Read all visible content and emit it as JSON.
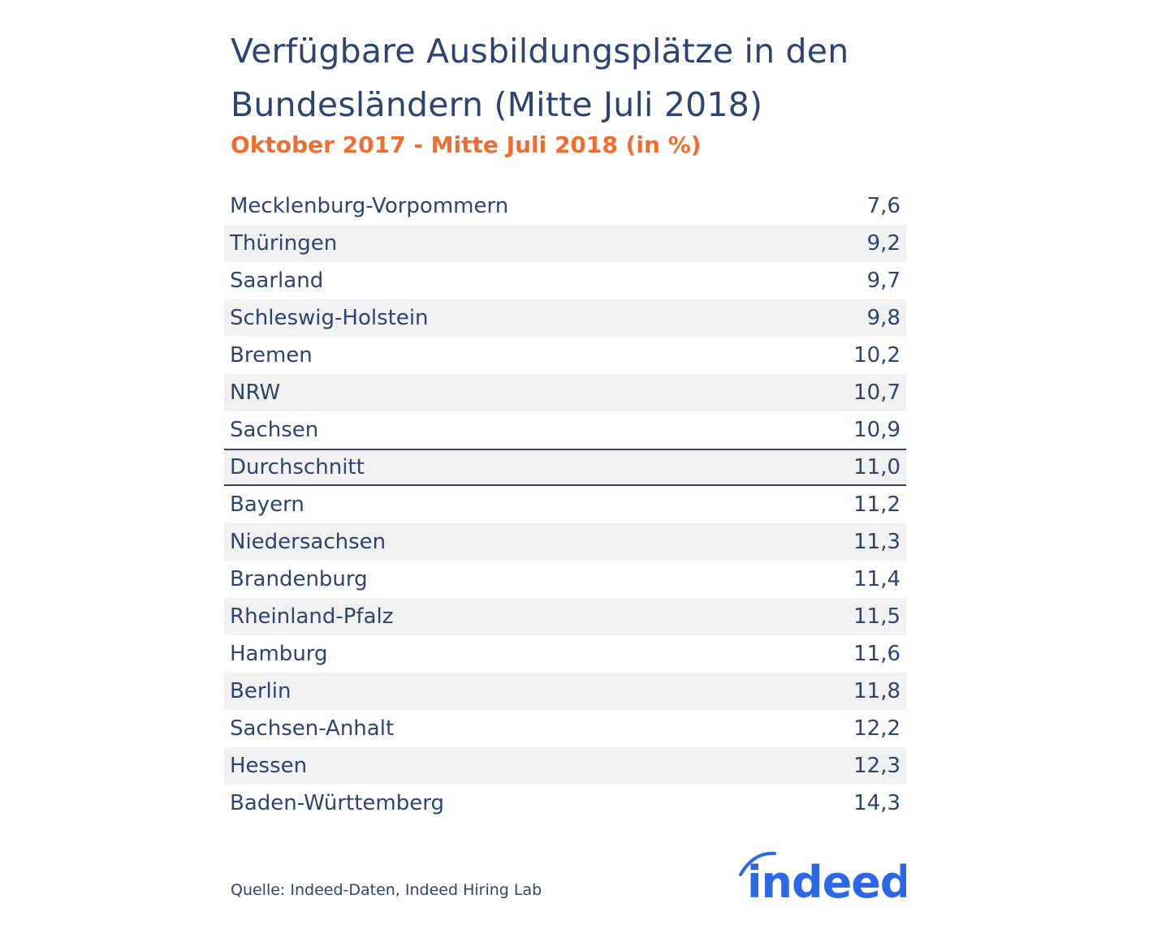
{
  "chart_data": {
    "type": "table",
    "title": "Verfügbare Ausbildungsplätze in den Bundesländern (Mitte Juli 2018)",
    "title_lines": [
      "Verfügbare Ausbildungsplätze in den",
      "Bundesländern (Mitte Juli 2018)"
    ],
    "subtitle": "Oktober 2017 - Mitte Juli 2018 (in %)",
    "rows": [
      {
        "label": "Mecklenburg-Vorpommern",
        "value": "7,6"
      },
      {
        "label": "Thüringen",
        "value": "9,2"
      },
      {
        "label": "Saarland",
        "value": "9,7"
      },
      {
        "label": "Schleswig-Holstein",
        "value": "9,8"
      },
      {
        "label": "Bremen",
        "value": "10,2"
      },
      {
        "label": "NRW",
        "value": "10,7"
      },
      {
        "label": "Sachsen",
        "value": "10,9"
      },
      {
        "label": "Durchschnitt",
        "value": "11,0",
        "highlight": true
      },
      {
        "label": "Bayern",
        "value": "11,2"
      },
      {
        "label": "Niedersachsen",
        "value": "11,3"
      },
      {
        "label": "Brandenburg",
        "value": "11,4"
      },
      {
        "label": "Rheinland-Pfalz",
        "value": "11,5"
      },
      {
        "label": "Hamburg",
        "value": "11,6"
      },
      {
        "label": "Berlin",
        "value": "11,8"
      },
      {
        "label": "Sachsen-Anhalt",
        "value": "12,2"
      },
      {
        "label": "Hessen",
        "value": "12,3"
      },
      {
        "label": "Baden-Württemberg",
        "value": "14,3"
      }
    ],
    "source": "Quelle: Indeed-Daten, Indeed Hiring Lab"
  },
  "logo": {
    "text": "indeed",
    "color": "#2c67e6"
  },
  "colors": {
    "title": "#2d4470",
    "subtitle": "#f26c2d",
    "stripe": "#f1f1f1"
  }
}
